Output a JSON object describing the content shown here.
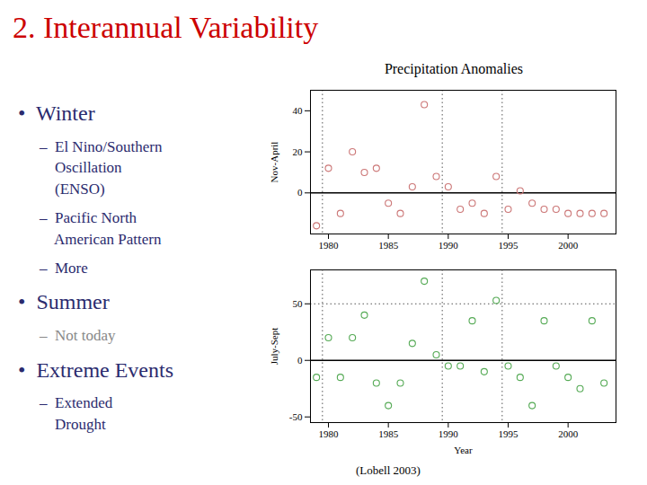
{
  "title": "2. Interannual Variability",
  "color": "#cc0000",
  "annotations": [
    {
      "text": "•  Winter",
      "color": "#2b2b6e"
    },
    {
      "text": "–  El Nino/Southern\n    Oscillation\n    (ENSO)",
      "color": "#2b2b6e"
    },
    {
      "text": "–  Pacific North\n    American Pattern",
      "color": "#2b2b6e"
    },
    {
      "text": "–  More",
      "color": "#2b2b6e"
    },
    {
      "text": "•  Summer",
      "color": "#2b2b6e"
    },
    {
      "text": "–  Not today",
      "color": "#888888"
    },
    {
      "text": "•  Extreme Events",
      "color": "#2b2b6e"
    },
    {
      "text": "–  Extended\n    Drought",
      "color": "#2b2b6e"
    }
  ],
  "caption": "(Lobell 2003)",
  "chart_data": [
    {
      "type": "scatter",
      "title": "Precipitation Anomalies",
      "ylabel": "Nov-April",
      "x": [
        1979,
        1980,
        1981,
        1982,
        1983,
        1984,
        1985,
        1986,
        1987,
        1988,
        1989,
        1990,
        1991,
        1992,
        1993,
        1994,
        1995,
        1996,
        1997,
        1998,
        1999,
        2000,
        2001,
        2002,
        2003
      ],
      "values": [
        -16,
        12,
        -10,
        20,
        10,
        12,
        -5,
        -10,
        3,
        43,
        8,
        3,
        -8,
        -5,
        -10,
        8,
        -8,
        1,
        -5,
        -8,
        -8,
        -10,
        -10,
        -10,
        -10
      ],
      "color": "#cc7777",
      "marker": "open_circle",
      "xlim": [
        1978.5,
        2004
      ],
      "xticks": [
        1980,
        1985,
        1990,
        1995,
        2000
      ],
      "ylim": [
        -20,
        50
      ],
      "yticks": [
        0,
        20,
        40
      ],
      "vlines": [
        1979.5,
        1989.5,
        1994.5
      ],
      "baseline": 0,
      "hlines": []
    },
    {
      "type": "scatter",
      "ylabel": "July-Sept",
      "xlabel": "Year",
      "x": [
        1979,
        1980,
        1981,
        1982,
        1983,
        1984,
        1985,
        1986,
        1987,
        1988,
        1989,
        1990,
        1991,
        1992,
        1993,
        1994,
        1995,
        1996,
        1997,
        1998,
        1999,
        2000,
        2001,
        2002,
        2003
      ],
      "values": [
        -15,
        20,
        -15,
        20,
        40,
        -20,
        -40,
        -20,
        15,
        70,
        5,
        -5,
        -5,
        35,
        -10,
        53,
        -5,
        -15,
        -40,
        35,
        -5,
        -15,
        -25,
        35,
        -20
      ],
      "color": "#55aa55",
      "marker": "open_circle",
      "xlim": [
        1978.5,
        2004
      ],
      "xticks": [
        1980,
        1985,
        1990,
        1995,
        2000
      ],
      "ylim": [
        -55,
        80
      ],
      "yticks": [
        -50,
        0,
        50
      ],
      "vlines": [
        1979.5,
        1989.5,
        1994.5
      ],
      "baseline": 0,
      "hlines": [
        50
      ]
    }
  ]
}
